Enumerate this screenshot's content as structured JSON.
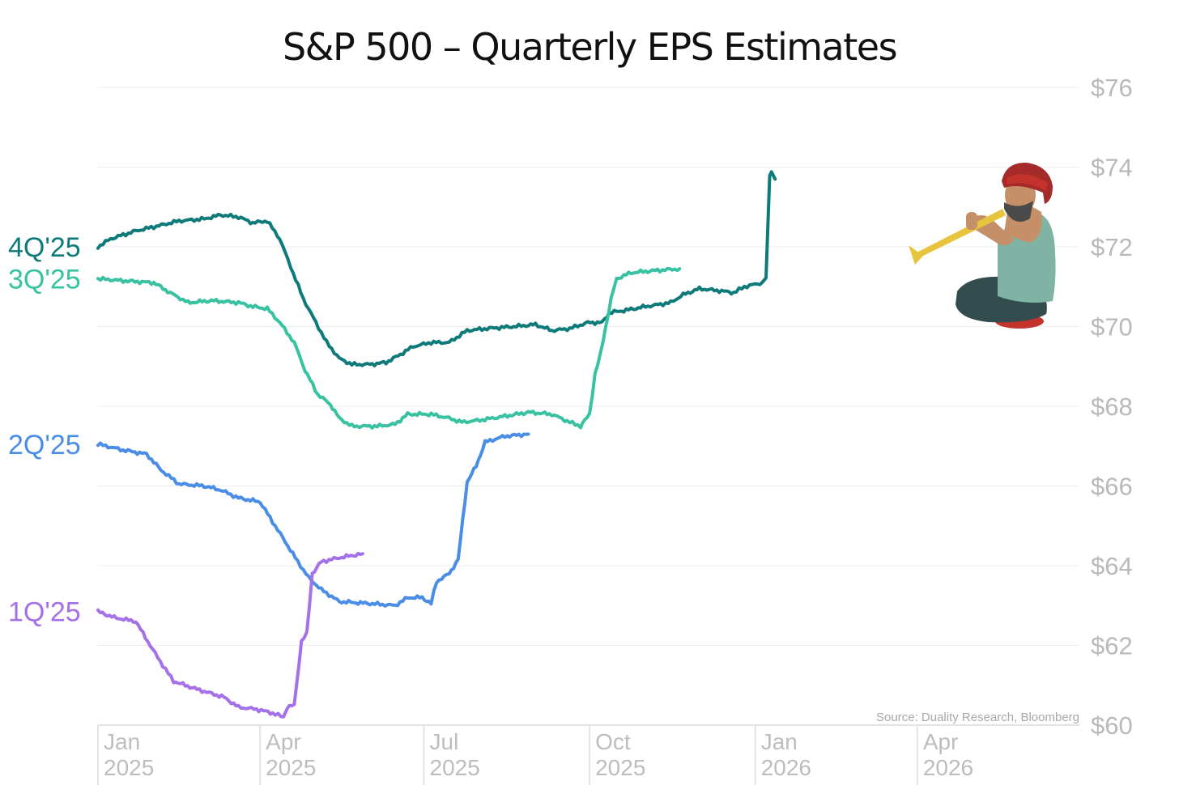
{
  "chart_data": {
    "type": "line",
    "title": "S&P 500 – Quarterly EPS Estimates",
    "xlabel": "",
    "ylabel": "",
    "ylim": [
      60,
      76
    ],
    "yticks": [
      60,
      62,
      64,
      66,
      68,
      70,
      72,
      74,
      76
    ],
    "ytick_labels": [
      "$60",
      "$62",
      "$64",
      "$66",
      "$68",
      "$70",
      "$72",
      "$74",
      "$76"
    ],
    "xlim": [
      "2025-01-01",
      "2026-06-30"
    ],
    "xticks": [
      {
        "date": "2025-01-01",
        "month": "Jan",
        "year": "2025"
      },
      {
        "date": "2025-04-01",
        "month": "Apr",
        "year": "2025"
      },
      {
        "date": "2025-07-01",
        "month": "Jul",
        "year": "2025"
      },
      {
        "date": "2025-10-01",
        "month": "Oct",
        "year": "2025"
      },
      {
        "date": "2026-01-01",
        "month": "Jan",
        "year": "2026"
      },
      {
        "date": "2026-04-01",
        "month": "Apr",
        "year": "2026"
      }
    ],
    "grid": true,
    "source": "Source: Duality Research, Bloomberg",
    "series": [
      {
        "name": "4Q'25",
        "color": "#0f7a7a",
        "points": [
          [
            "2025-01-01",
            72.0
          ],
          [
            "2025-01-08",
            72.2
          ],
          [
            "2025-01-15",
            72.3
          ],
          [
            "2025-01-22",
            72.4
          ],
          [
            "2025-02-01",
            72.5
          ],
          [
            "2025-02-15",
            72.65
          ],
          [
            "2025-03-01",
            72.7
          ],
          [
            "2025-03-10",
            72.8
          ],
          [
            "2025-03-20",
            72.75
          ],
          [
            "2025-03-28",
            72.6
          ],
          [
            "2025-04-05",
            72.65
          ],
          [
            "2025-04-12",
            72.2
          ],
          [
            "2025-04-18",
            71.5
          ],
          [
            "2025-04-25",
            70.7
          ],
          [
            "2025-05-02",
            70.1
          ],
          [
            "2025-05-08",
            69.6
          ],
          [
            "2025-05-15",
            69.2
          ],
          [
            "2025-05-22",
            69.05
          ],
          [
            "2025-06-01",
            69.05
          ],
          [
            "2025-06-10",
            69.1
          ],
          [
            "2025-06-18",
            69.3
          ],
          [
            "2025-06-25",
            69.5
          ],
          [
            "2025-07-05",
            69.6
          ],
          [
            "2025-07-15",
            69.6
          ],
          [
            "2025-07-25",
            69.9
          ],
          [
            "2025-08-05",
            69.95
          ],
          [
            "2025-08-20",
            70.0
          ],
          [
            "2025-09-01",
            70.05
          ],
          [
            "2025-09-10",
            69.9
          ],
          [
            "2025-09-20",
            69.95
          ],
          [
            "2025-09-30",
            70.1
          ],
          [
            "2025-10-08",
            70.1
          ],
          [
            "2025-10-12",
            70.35
          ],
          [
            "2025-10-20",
            70.4
          ],
          [
            "2025-11-01",
            70.5
          ],
          [
            "2025-11-15",
            70.6
          ],
          [
            "2025-11-22",
            70.8
          ],
          [
            "2025-12-01",
            70.95
          ],
          [
            "2025-12-12",
            70.9
          ],
          [
            "2025-12-20",
            70.85
          ],
          [
            "2025-12-26",
            71.0
          ],
          [
            "2026-01-05",
            71.1
          ],
          [
            "2026-01-07",
            71.2
          ],
          [
            "2026-01-09",
            73.8
          ],
          [
            "2026-01-10",
            73.9
          ],
          [
            "2026-01-12",
            73.7
          ]
        ]
      },
      {
        "name": "3Q'25",
        "color": "#38c2a2",
        "points": [
          [
            "2025-01-01",
            71.2
          ],
          [
            "2025-01-15",
            71.15
          ],
          [
            "2025-02-01",
            71.1
          ],
          [
            "2025-02-10",
            70.85
          ],
          [
            "2025-02-20",
            70.6
          ],
          [
            "2025-03-05",
            70.65
          ],
          [
            "2025-03-20",
            70.6
          ],
          [
            "2025-03-28",
            70.5
          ],
          [
            "2025-04-05",
            70.45
          ],
          [
            "2025-04-12",
            70.1
          ],
          [
            "2025-04-20",
            69.6
          ],
          [
            "2025-04-26",
            68.9
          ],
          [
            "2025-05-03",
            68.3
          ],
          [
            "2025-05-10",
            68.05
          ],
          [
            "2025-05-15",
            67.7
          ],
          [
            "2025-05-22",
            67.5
          ],
          [
            "2025-06-05",
            67.5
          ],
          [
            "2025-06-15",
            67.55
          ],
          [
            "2025-06-22",
            67.8
          ],
          [
            "2025-07-05",
            67.8
          ],
          [
            "2025-07-15",
            67.7
          ],
          [
            "2025-07-22",
            67.6
          ],
          [
            "2025-08-01",
            67.65
          ],
          [
            "2025-08-15",
            67.75
          ],
          [
            "2025-08-28",
            67.85
          ],
          [
            "2025-09-10",
            67.8
          ],
          [
            "2025-09-20",
            67.6
          ],
          [
            "2025-09-26",
            67.5
          ],
          [
            "2025-10-01",
            67.8
          ],
          [
            "2025-10-04",
            68.8
          ],
          [
            "2025-10-07",
            69.3
          ],
          [
            "2025-10-10",
            70.0
          ],
          [
            "2025-10-13",
            70.7
          ],
          [
            "2025-10-16",
            71.2
          ],
          [
            "2025-10-24",
            71.35
          ],
          [
            "2025-11-05",
            71.4
          ],
          [
            "2025-11-20",
            71.45
          ]
        ]
      },
      {
        "name": "2Q'25",
        "color": "#4a8de6",
        "points": [
          [
            "2025-01-01",
            67.05
          ],
          [
            "2025-01-15",
            66.9
          ],
          [
            "2025-01-28",
            66.8
          ],
          [
            "2025-02-05",
            66.4
          ],
          [
            "2025-02-15",
            66.05
          ],
          [
            "2025-03-01",
            66.0
          ],
          [
            "2025-03-10",
            65.9
          ],
          [
            "2025-03-20",
            65.7
          ],
          [
            "2025-04-01",
            65.6
          ],
          [
            "2025-04-08",
            65.1
          ],
          [
            "2025-04-15",
            64.6
          ],
          [
            "2025-04-22",
            64.1
          ],
          [
            "2025-04-28",
            63.7
          ],
          [
            "2025-05-05",
            63.4
          ],
          [
            "2025-05-15",
            63.1
          ],
          [
            "2025-06-01",
            63.05
          ],
          [
            "2025-06-15",
            63.0
          ],
          [
            "2025-06-22",
            63.2
          ],
          [
            "2025-06-30",
            63.2
          ],
          [
            "2025-07-05",
            63.05
          ],
          [
            "2025-07-08",
            63.6
          ],
          [
            "2025-07-15",
            63.8
          ],
          [
            "2025-07-20",
            64.15
          ],
          [
            "2025-07-25",
            66.1
          ],
          [
            "2025-07-30",
            66.5
          ],
          [
            "2025-08-04",
            67.1
          ],
          [
            "2025-08-15",
            67.25
          ],
          [
            "2025-08-28",
            67.3
          ]
        ]
      },
      {
        "name": "1Q'25",
        "color": "#a471e8",
        "points": [
          [
            "2025-01-01",
            62.85
          ],
          [
            "2025-01-10",
            62.7
          ],
          [
            "2025-01-22",
            62.6
          ],
          [
            "2025-01-30",
            62.0
          ],
          [
            "2025-02-06",
            61.5
          ],
          [
            "2025-02-12",
            61.1
          ],
          [
            "2025-02-25",
            60.9
          ],
          [
            "2025-03-12",
            60.7
          ],
          [
            "2025-03-20",
            60.45
          ],
          [
            "2025-03-30",
            60.4
          ],
          [
            "2025-04-08",
            60.3
          ],
          [
            "2025-04-14",
            60.2
          ],
          [
            "2025-04-16",
            60.45
          ],
          [
            "2025-04-20",
            60.5
          ],
          [
            "2025-04-24",
            62.1
          ],
          [
            "2025-04-27",
            62.3
          ],
          [
            "2025-04-30",
            63.8
          ],
          [
            "2025-05-05",
            64.1
          ],
          [
            "2025-05-15",
            64.2
          ],
          [
            "2025-05-28",
            64.3
          ]
        ]
      }
    ]
  },
  "palette": {
    "grid": "#ececec",
    "axis": "#e3e3e3",
    "tick_text": "#b9b9b9",
    "title": "#111111"
  },
  "illustration": {
    "name": "turbaned-man-blowing-horn"
  }
}
